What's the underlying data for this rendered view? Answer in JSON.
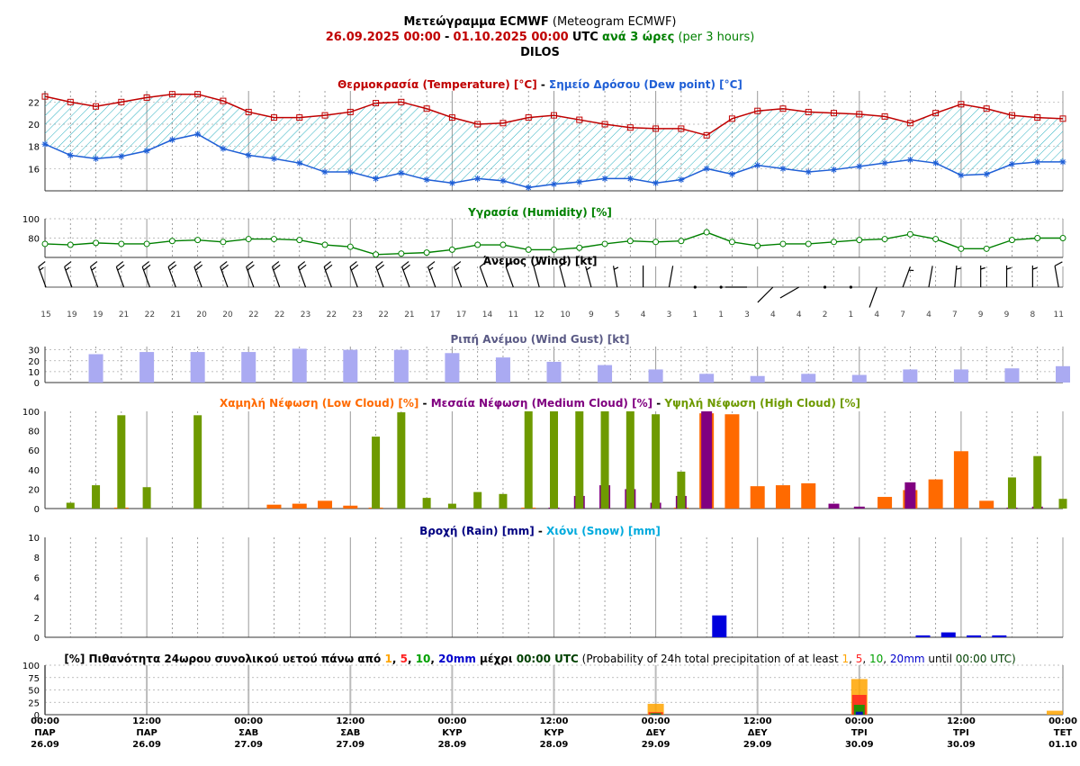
{
  "header": {
    "title_greek": "Μετεώγραμμα ECMWF",
    "title_english": "(Meteogram ECMWF)",
    "period_start": "26.09.2025 00:00",
    "dash": "-",
    "period_end": "01.10.2025 00:00",
    "tz": "UTC",
    "step_greek": "ανά 3 ώρες",
    "step_english": "(per 3 hours)",
    "location": "DILOS"
  },
  "colors": {
    "temperature": "#c00000",
    "dewpoint": "#1f5fd6",
    "hatch": "#2ab0c0",
    "humidity": "#008000",
    "gust": "#aaaaf2",
    "low_cloud": "#ff6a00",
    "medium_cloud": "#800080",
    "high_cloud": "#6e9a00",
    "rain": "#0000dd",
    "snow": "#00aadd",
    "p1": "#ffa500",
    "p5": "#ff2020",
    "p10": "#00a000",
    "p20": "#0000cc"
  },
  "chart_data": [
    {
      "type": "line",
      "title": "Θερμοκρασία (Temperature) [°C] - Σημείο Δρόσου (Dew point) [°C]",
      "title_parts": {
        "t1": "Θερμοκρασία (Temperature) [°C]",
        "sep": " - ",
        "t2": "Σημείο Δρόσου (Dew point) [°C]"
      },
      "ylim": [
        14,
        23
      ],
      "yticks": [
        16,
        18,
        20,
        22
      ],
      "series": [
        {
          "name": "Θερμοκρασία (Temperature) [°C]",
          "values": [
            22.5,
            22.0,
            21.6,
            22.0,
            22.4,
            22.7,
            22.7,
            22.1,
            21.1,
            20.6,
            20.6,
            20.8,
            21.1,
            21.9,
            22.0,
            21.4,
            20.6,
            20.0,
            20.1,
            20.6,
            20.8,
            20.4,
            20.0,
            19.7,
            19.6,
            19.6,
            19.0,
            20.5,
            21.2,
            21.4,
            21.1,
            21.0,
            20.9,
            20.7,
            20.1,
            21.0,
            21.8,
            21.4,
            20.8,
            20.6,
            20.5
          ]
        },
        {
          "name": "Σημείο Δρόσου (Dew point) [°C]",
          "values": [
            18.2,
            17.2,
            16.9,
            17.1,
            17.6,
            18.6,
            19.1,
            17.8,
            17.2,
            16.9,
            16.5,
            15.7,
            15.7,
            15.1,
            15.6,
            15.0,
            14.7,
            15.1,
            14.9,
            14.3,
            14.6,
            14.8,
            15.1,
            15.1,
            14.7,
            15.0,
            16.0,
            15.5,
            16.3,
            16.0,
            15.7,
            15.9,
            16.2,
            16.5,
            16.8,
            16.5,
            15.4,
            15.5,
            16.4,
            16.6,
            16.6
          ]
        }
      ]
    },
    {
      "type": "line",
      "title": "Υγρασία (Humidity) [%]",
      "ylim": [
        60,
        100
      ],
      "yticks": [
        80,
        100
      ],
      "series": [
        {
          "name": "Υγρασία (Humidity) [%]",
          "values": [
            74,
            73,
            75,
            74,
            74,
            77,
            78,
            76,
            79,
            79,
            78,
            73,
            71,
            63,
            64,
            65,
            68,
            73,
            73,
            68,
            68,
            70,
            74,
            77,
            76,
            77,
            86,
            76,
            72,
            74,
            74,
            76,
            78,
            79,
            84,
            79,
            69,
            69,
            78,
            80,
            80
          ]
        }
      ]
    },
    {
      "type": "table",
      "title": "Άνεμος (Wind) [kt]",
      "speeds": [
        15,
        19,
        19,
        21,
        22,
        21,
        20,
        20,
        22,
        22,
        23,
        22,
        23,
        22,
        21,
        17,
        17,
        14,
        11,
        12,
        10,
        9,
        5,
        4,
        3,
        1,
        1,
        3,
        4,
        4,
        2,
        1,
        4,
        7,
        4,
        7,
        9,
        9,
        8,
        11
      ],
      "directions_deg": [
        340,
        340,
        340,
        340,
        340,
        340,
        340,
        340,
        340,
        340,
        340,
        340,
        340,
        340,
        340,
        340,
        340,
        340,
        340,
        345,
        345,
        345,
        350,
        0,
        10,
        90,
        120,
        270,
        225,
        240,
        280,
        300,
        200,
        20,
        10,
        5,
        0,
        0,
        0,
        350
      ]
    },
    {
      "type": "bar",
      "title": "Ριπή Ανέμου (Wind Gust) [kt]",
      "ylim": [
        0,
        33
      ],
      "yticks": [
        0,
        10,
        20,
        30
      ],
      "values": [
        26,
        28,
        28,
        28,
        31,
        30,
        30,
        27,
        23,
        19,
        16,
        12,
        8,
        6,
        8,
        7,
        12,
        12,
        13,
        15
      ]
    },
    {
      "type": "bar",
      "title": "Χαμηλή Νέφωση (Low Cloud) [%] - Μεσαία Νέφωση (Medium Cloud) [%] - Υψηλή Νέφωση (High Cloud) [%]",
      "title_parts": {
        "low": "Χαμηλή Νέφωση (Low Cloud) [%]",
        "mid": "Μεσαία Νέφωση (Medium Cloud) [%]",
        "high": "Υψηλή Νέφωση (High Cloud) [%]",
        "sep": " - "
      },
      "ylim": [
        0,
        100
      ],
      "yticks": [
        0,
        20,
        40,
        60,
        80,
        100
      ],
      "series": [
        {
          "name": "Χαμηλή Νέφωση (Low Cloud) [%]",
          "values": [
            0,
            0,
            1,
            0,
            0,
            0,
            0,
            0,
            4,
            5,
            8,
            3,
            1,
            0,
            0,
            0,
            0,
            0,
            1,
            0,
            0,
            0,
            0,
            0,
            1,
            98,
            97,
            23,
            24,
            26,
            0,
            0,
            12,
            19,
            30,
            59,
            8,
            0,
            0,
            0
          ]
        },
        {
          "name": "Μεσαία Νέφωση (Medium Cloud) [%]",
          "values": [
            0,
            0,
            0,
            0,
            0,
            0,
            0,
            0,
            0,
            0,
            0,
            0,
            0,
            0,
            0,
            0,
            0,
            0,
            0,
            1,
            13,
            24,
            20,
            6,
            13,
            100,
            0,
            0,
            0,
            0,
            5,
            2,
            0,
            27,
            0,
            0,
            0,
            1,
            2,
            0
          ]
        },
        {
          "name": "Υψηλή Νέφωση (High Cloud) [%]",
          "values": [
            6,
            24,
            96,
            22,
            0,
            96,
            0,
            0,
            0,
            0,
            0,
            0,
            74,
            99,
            11,
            5,
            17,
            15,
            100,
            100,
            100,
            100,
            100,
            97,
            38,
            0,
            0,
            0,
            0,
            0,
            0,
            0,
            0,
            0,
            0,
            0,
            0,
            32,
            54,
            10
          ]
        }
      ]
    },
    {
      "type": "bar",
      "title": "Βροχή (Rain) [mm] - Χιόνι (Snow) [mm]",
      "title_parts": {
        "rain": "Βροχή (Rain) [mm]",
        "snow": "Χιόνι (Snow) [mm]",
        "sep": " - "
      },
      "ylim": [
        0,
        10
      ],
      "yticks": [
        0,
        2,
        4,
        6,
        8,
        10
      ],
      "series": [
        {
          "name": "Βροχή (Rain) [mm]",
          "values": [
            0,
            0,
            0,
            0,
            0,
            0,
            0,
            0,
            0,
            0,
            0,
            0,
            0,
            0,
            0,
            0,
            0,
            0,
            0,
            0,
            0,
            0,
            0,
            0,
            0,
            0,
            2.1,
            0,
            0,
            0,
            0,
            0,
            0,
            0,
            0.1,
            0.4,
            0.1,
            0.1,
            0,
            0
          ]
        },
        {
          "name": "Χιόνι (Snow) [mm]",
          "values": [
            0,
            0,
            0,
            0,
            0,
            0,
            0,
            0,
            0,
            0,
            0,
            0,
            0,
            0,
            0,
            0,
            0,
            0,
            0,
            0,
            0,
            0,
            0,
            0,
            0,
            0,
            0,
            0,
            0,
            0,
            0,
            0,
            0,
            0,
            0,
            0,
            0,
            0,
            0,
            0
          ]
        }
      ]
    },
    {
      "type": "bar",
      "title": "[%] Πιθανότητα 24ωρου συνολικού υετού πάνω από 1, 5, 10, 20mm μέχρι 00:00 UTC (Probability of 24h total precipitation of at least 1, 5, 10, 20mm until 00:00 UTC)",
      "title_parts": {
        "g_pre": "[%] Πιθανότητα 24ωρου συνολικού υετού πάνω από",
        "g_mid": "μέχρι",
        "g_time": "00:00 UTC",
        "e_pre": "(Probability of 24h total precipitation of at least",
        "e_mid": "until",
        "e_time": "00:00 UTC)",
        "thr1": "1",
        "thr5": "5",
        "thr10": "10",
        "thr20": "20mm",
        "comma": ", "
      },
      "ylim": [
        0,
        100
      ],
      "yticks": [
        0,
        25,
        50,
        75,
        100
      ],
      "categories": [
        "29.09",
        "30.09",
        "01.10"
      ],
      "series": [
        {
          "name": "1",
          "values": [
            22,
            72,
            8
          ]
        },
        {
          "name": "5",
          "values": [
            5,
            40,
            0
          ]
        },
        {
          "name": "10",
          "values": [
            3,
            20,
            0
          ]
        },
        {
          "name": "20mm",
          "values": [
            1,
            6,
            0
          ]
        }
      ]
    }
  ],
  "time_axis": {
    "steps": 41,
    "ticks": [
      {
        "time": "00:00",
        "day": "ΠΑΡ",
        "date": "26.09"
      },
      {
        "time": "12:00",
        "day": "ΠΑΡ",
        "date": "26.09"
      },
      {
        "time": "00:00",
        "day": "ΣΑΒ",
        "date": "27.09"
      },
      {
        "time": "12:00",
        "day": "ΣΑΒ",
        "date": "27.09"
      },
      {
        "time": "00:00",
        "day": "ΚΥΡ",
        "date": "28.09"
      },
      {
        "time": "12:00",
        "day": "ΚΥΡ",
        "date": "28.09"
      },
      {
        "time": "00:00",
        "day": "ΔΕΥ",
        "date": "29.09"
      },
      {
        "time": "12:00",
        "day": "ΔΕΥ",
        "date": "29.09"
      },
      {
        "time": "00:00",
        "day": "ΤΡΙ",
        "date": "30.09"
      },
      {
        "time": "12:00",
        "day": "ΤΡΙ",
        "date": "30.09"
      },
      {
        "time": "00:00",
        "day": "ΤΕΤ",
        "date": "01.10"
      }
    ]
  }
}
